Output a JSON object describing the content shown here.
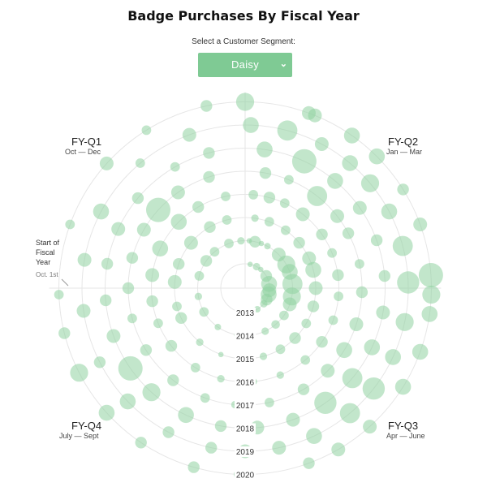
{
  "page": {
    "title": "Badge Purchases By Fiscal Year",
    "select_label": "Select a Customer Segment:",
    "select_value": "Daisy",
    "select_icon": "chevron-down-icon"
  },
  "colors": {
    "accent": "#7fca94",
    "dot": "#8fd1a1",
    "grid": "#e6e6e6"
  },
  "quarters": [
    {
      "label": "FY-Q1",
      "range": "Oct — Dec"
    },
    {
      "label": "FY-Q2",
      "range": "Jan — Mar"
    },
    {
      "label": "FY-Q3",
      "range": "Apr — June"
    },
    {
      "label": "FY-Q4",
      "range": "July — Sept"
    }
  ],
  "start_annotation": {
    "lines": [
      "Start of",
      "Fiscal",
      "Year"
    ],
    "date": "Oct. 1st"
  },
  "chart_data": {
    "type": "scatter",
    "title": "Badge Purchases By Fiscal Year",
    "radial_axis": [
      "2013",
      "2014",
      "2015",
      "2016",
      "2017",
      "2018",
      "2019",
      "2020"
    ],
    "angular_axis": [
      "FY-Q1",
      "FY-Q2",
      "FY-Q3",
      "FY-Q4"
    ],
    "grid": true,
    "series": [
      {
        "year": "2013",
        "points": [
          {
            "a": 12,
            "s": 0.1
          },
          {
            "a": 28,
            "s": 0.2
          },
          {
            "a": 40,
            "s": 0.1
          },
          {
            "a": 60,
            "s": 0.4
          },
          {
            "a": 80,
            "s": 0.6
          },
          {
            "a": 95,
            "s": 0.5
          },
          {
            "a": 105,
            "s": 0.6
          },
          {
            "a": 118,
            "s": 0.4
          },
          {
            "a": 130,
            "s": 0.2
          },
          {
            "a": 150,
            "s": 0.15
          },
          {
            "a": 170,
            "s": 0.1
          }
        ]
      },
      {
        "year": "2014",
        "points": [
          {
            "a": 5,
            "s": 0.1
          },
          {
            "a": 12,
            "s": 0.4
          },
          {
            "a": 20,
            "s": 0.1
          },
          {
            "a": 28,
            "s": 0.15
          },
          {
            "a": 45,
            "s": 0.5
          },
          {
            "a": 60,
            "s": 0.7
          },
          {
            "a": 70,
            "s": 0.6
          },
          {
            "a": 85,
            "s": 0.8
          },
          {
            "a": 100,
            "s": 0.7
          },
          {
            "a": 110,
            "s": 0.5
          },
          {
            "a": 125,
            "s": 0.3
          },
          {
            "a": 140,
            "s": 0.25
          },
          {
            "a": 155,
            "s": 0.2
          },
          {
            "a": 190,
            "s": 0.1
          },
          {
            "a": 215,
            "s": 0.15
          },
          {
            "a": 240,
            "s": 0.3
          },
          {
            "a": 260,
            "s": 0.2
          },
          {
            "a": 285,
            "s": 0.3
          },
          {
            "a": 305,
            "s": 0.4
          },
          {
            "a": 320,
            "s": 0.3
          },
          {
            "a": 340,
            "s": 0.3
          },
          {
            "a": 355,
            "s": 0.2
          }
        ]
      },
      {
        "year": "2015",
        "points": [
          {
            "a": 8,
            "s": 0.2
          },
          {
            "a": 20,
            "s": 0.3
          },
          {
            "a": 35,
            "s": 0.3
          },
          {
            "a": 50,
            "s": 0.4
          },
          {
            "a": 65,
            "s": 0.5
          },
          {
            "a": 75,
            "s": 0.6
          },
          {
            "a": 90,
            "s": 0.5
          },
          {
            "a": 105,
            "s": 0.4
          },
          {
            "a": 120,
            "s": 0.3
          },
          {
            "a": 135,
            "s": 0.4
          },
          {
            "a": 150,
            "s": 0.3
          },
          {
            "a": 165,
            "s": 0.2
          },
          {
            "a": 180,
            "s": 0.2
          },
          {
            "a": 200,
            "s": 0.1
          },
          {
            "a": 220,
            "s": 0.2
          },
          {
            "a": 245,
            "s": 0.4
          },
          {
            "a": 255,
            "s": 0.3
          },
          {
            "a": 275,
            "s": 0.5
          },
          {
            "a": 290,
            "s": 0.4
          },
          {
            "a": 310,
            "s": 0.5
          },
          {
            "a": 330,
            "s": 0.4
          },
          {
            "a": 345,
            "s": 0.3
          }
        ]
      },
      {
        "year": "2016",
        "points": [
          {
            "a": 5,
            "s": 0.3
          },
          {
            "a": 15,
            "s": 0.4
          },
          {
            "a": 25,
            "s": 0.3
          },
          {
            "a": 38,
            "s": 0.5
          },
          {
            "a": 55,
            "s": 0.4
          },
          {
            "a": 68,
            "s": 0.3
          },
          {
            "a": 82,
            "s": 0.4
          },
          {
            "a": 95,
            "s": 0.3
          },
          {
            "a": 110,
            "s": 0.3
          },
          {
            "a": 125,
            "s": 0.4
          },
          {
            "a": 140,
            "s": 0.3
          },
          {
            "a": 158,
            "s": 0.2
          },
          {
            "a": 175,
            "s": 0.2
          },
          {
            "a": 195,
            "s": 0.2
          },
          {
            "a": 212,
            "s": 0.3
          },
          {
            "a": 232,
            "s": 0.4
          },
          {
            "a": 248,
            "s": 0.3
          },
          {
            "a": 262,
            "s": 0.4
          },
          {
            "a": 278,
            "s": 0.5
          },
          {
            "a": 295,
            "s": 0.6
          },
          {
            "a": 315,
            "s": 0.6
          },
          {
            "a": 330,
            "s": 0.4
          },
          {
            "a": 348,
            "s": 0.3
          }
        ]
      },
      {
        "year": "2017",
        "points": [
          {
            "a": 10,
            "s": 0.4
          },
          {
            "a": 22,
            "s": 0.3
          },
          {
            "a": 38,
            "s": 0.8
          },
          {
            "a": 52,
            "s": 0.5
          },
          {
            "a": 62,
            "s": 0.4
          },
          {
            "a": 78,
            "s": 0.3
          },
          {
            "a": 92,
            "s": 0.4
          },
          {
            "a": 108,
            "s": 0.5
          },
          {
            "a": 122,
            "s": 0.6
          },
          {
            "a": 135,
            "s": 0.5
          },
          {
            "a": 150,
            "s": 0.4
          },
          {
            "a": 168,
            "s": 0.3
          },
          {
            "a": 185,
            "s": 0.2
          },
          {
            "a": 200,
            "s": 0.3
          },
          {
            "a": 218,
            "s": 0.4
          },
          {
            "a": 238,
            "s": 0.4
          },
          {
            "a": 255,
            "s": 0.3
          },
          {
            "a": 270,
            "s": 0.4
          },
          {
            "a": 285,
            "s": 0.4
          },
          {
            "a": 300,
            "s": 0.5
          },
          {
            "a": 312,
            "s": 1.0
          },
          {
            "a": 325,
            "s": 0.5
          },
          {
            "a": 342,
            "s": 0.4
          }
        ]
      },
      {
        "year": "2018",
        "points": [
          {
            "a": 8,
            "s": 0.6
          },
          {
            "a": 25,
            "s": 1.0
          },
          {
            "a": 40,
            "s": 0.6
          },
          {
            "a": 55,
            "s": 0.5
          },
          {
            "a": 70,
            "s": 0.4
          },
          {
            "a": 85,
            "s": 0.4
          },
          {
            "a": 100,
            "s": 0.5
          },
          {
            "a": 115,
            "s": 0.6
          },
          {
            "a": 130,
            "s": 0.8
          },
          {
            "a": 145,
            "s": 0.9
          },
          {
            "a": 160,
            "s": 0.5
          },
          {
            "a": 175,
            "s": 0.5
          },
          {
            "a": 190,
            "s": 0.4
          },
          {
            "a": 205,
            "s": 0.6
          },
          {
            "a": 222,
            "s": 0.7
          },
          {
            "a": 235,
            "s": 1.0
          },
          {
            "a": 250,
            "s": 0.5
          },
          {
            "a": 265,
            "s": 0.4
          },
          {
            "a": 280,
            "s": 0.4
          },
          {
            "a": 295,
            "s": 0.5
          },
          {
            "a": 310,
            "s": 0.4
          },
          {
            "a": 330,
            "s": 0.3
          },
          {
            "a": 345,
            "s": 0.4
          }
        ]
      },
      {
        "year": "2019",
        "points": [
          {
            "a": 2,
            "s": 0.6
          },
          {
            "a": 15,
            "s": 0.8
          },
          {
            "a": 28,
            "s": 0.5
          },
          {
            "a": 40,
            "s": 0.6
          },
          {
            "a": 50,
            "s": 0.7
          },
          {
            "a": 62,
            "s": 0.6
          },
          {
            "a": 75,
            "s": 0.8
          },
          {
            "a": 88,
            "s": 0.9
          },
          {
            "a": 102,
            "s": 0.7
          },
          {
            "a": 115,
            "s": 0.6
          },
          {
            "a": 128,
            "s": 0.9
          },
          {
            "a": 140,
            "s": 0.8
          },
          {
            "a": 155,
            "s": 0.6
          },
          {
            "a": 168,
            "s": 0.5
          },
          {
            "a": 180,
            "s": 0.5
          },
          {
            "a": 192,
            "s": 0.4
          },
          {
            "a": 208,
            "s": 0.4
          },
          {
            "a": 226,
            "s": 0.6
          },
          {
            "a": 243,
            "s": 0.4
          },
          {
            "a": 262,
            "s": 0.5
          },
          {
            "a": 280,
            "s": 0.5
          },
          {
            "a": 298,
            "s": 0.6
          },
          {
            "a": 320,
            "s": 0.3
          },
          {
            "a": 340,
            "s": 0.5
          }
        ]
      },
      {
        "year": "2020",
        "points": [
          {
            "a": 0,
            "s": 0.7
          },
          {
            "a": 20,
            "s": 0.5
          },
          {
            "a": 22,
            "s": 0.5
          },
          {
            "a": 35,
            "s": 0.6
          },
          {
            "a": 45,
            "s": 0.6
          },
          {
            "a": 58,
            "s": 0.4
          },
          {
            "a": 70,
            "s": 0.5
          },
          {
            "a": 86,
            "s": 1.0
          },
          {
            "a": 92,
            "s": 0.7
          },
          {
            "a": 98,
            "s": 0.6
          },
          {
            "a": 110,
            "s": 0.6
          },
          {
            "a": 122,
            "s": 0.6
          },
          {
            "a": 138,
            "s": 0.5
          },
          {
            "a": 150,
            "s": 0.5
          },
          {
            "a": 160,
            "s": 0.4
          },
          {
            "a": 182,
            "s": 0.3
          },
          {
            "a": 196,
            "s": 0.4
          },
          {
            "a": 214,
            "s": 0.4
          },
          {
            "a": 228,
            "s": 0.6
          },
          {
            "a": 243,
            "s": 0.7
          },
          {
            "a": 256,
            "s": 0.4
          },
          {
            "a": 268,
            "s": 0.3
          },
          {
            "a": 290,
            "s": 0.3
          },
          {
            "a": 312,
            "s": 0.5
          },
          {
            "a": 328,
            "s": 0.3
          },
          {
            "a": 348,
            "s": 0.4
          }
        ]
      }
    ]
  }
}
